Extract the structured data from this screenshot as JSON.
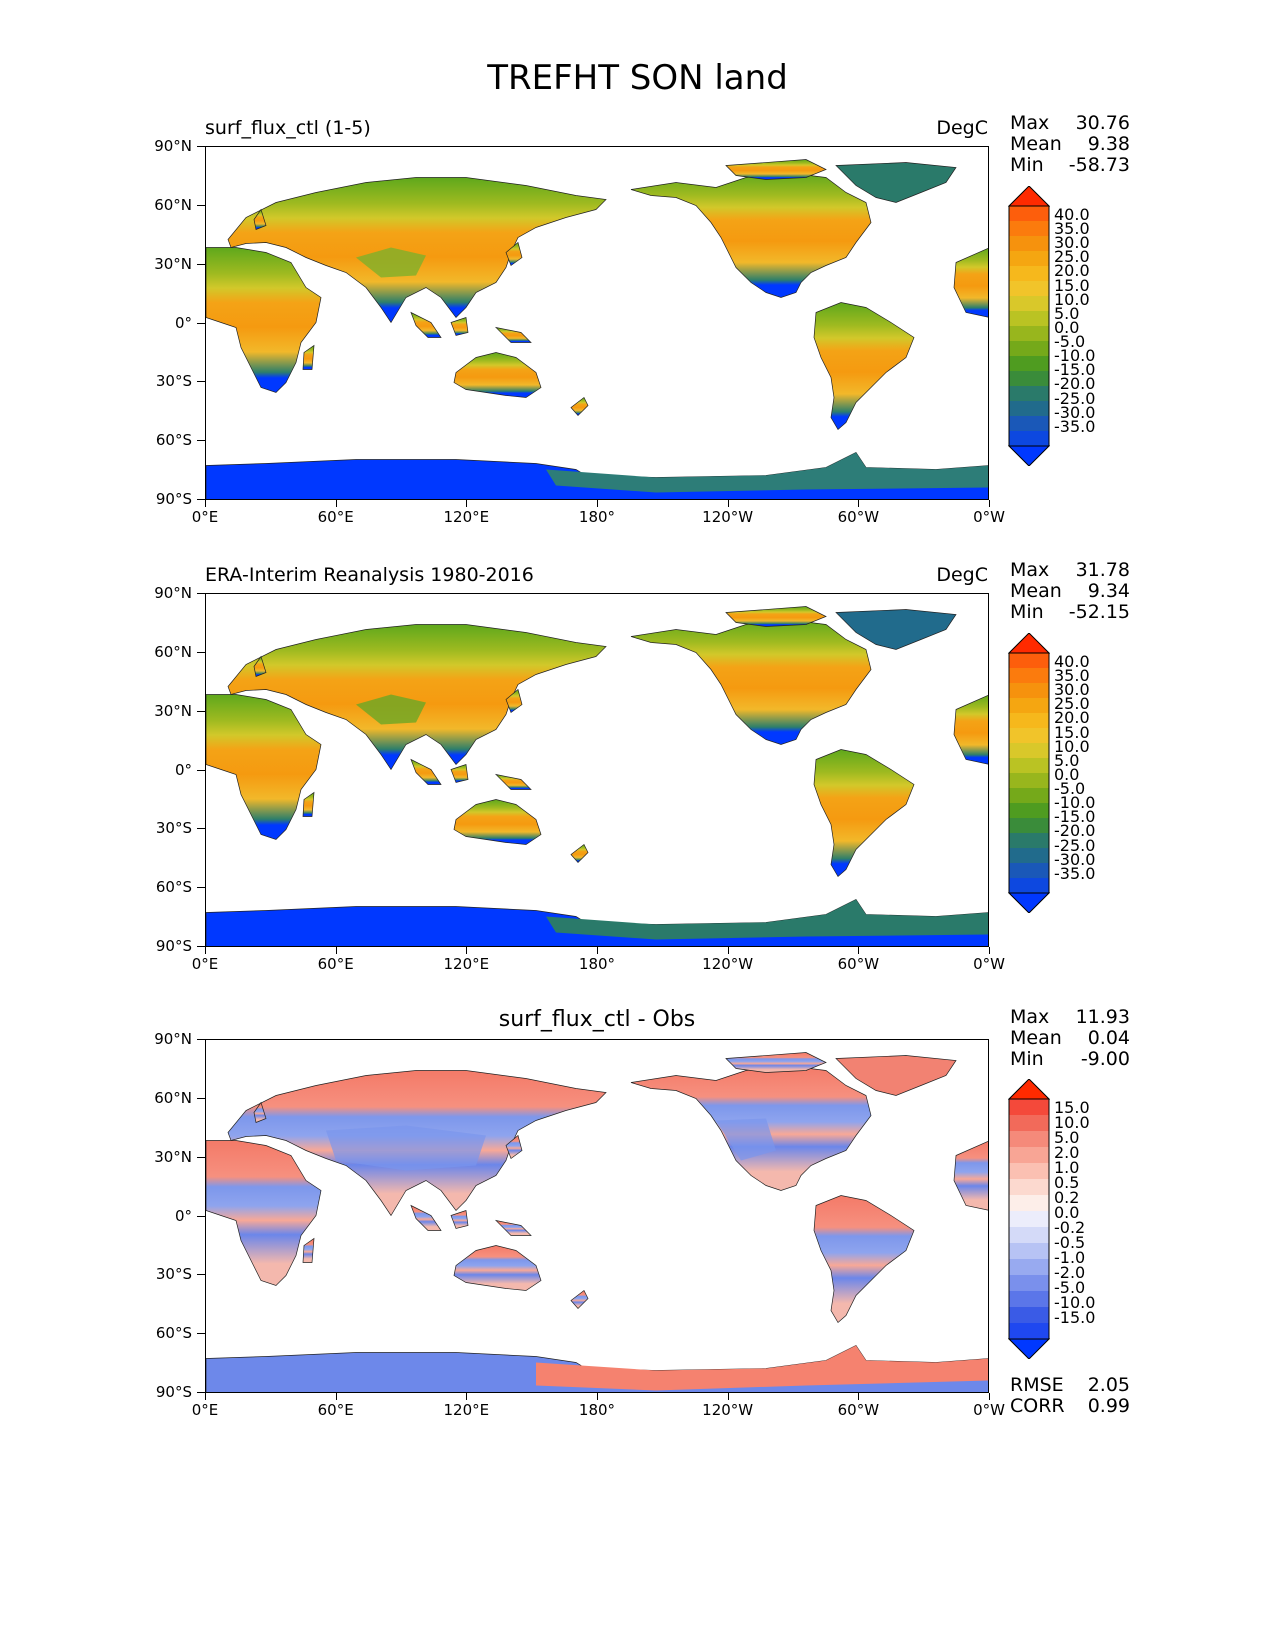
{
  "figure": {
    "title": "TREFHT SON land",
    "lat_ticks": [
      "90°N",
      "60°N",
      "30°N",
      "0°",
      "30°S",
      "60°S",
      "90°S"
    ],
    "lon_ticks": [
      "0°E",
      "60°E",
      "120°E",
      "180°",
      "120°W",
      "60°W",
      "0°W"
    ]
  },
  "panels": [
    {
      "title": "surf_flux_ctl (1-5)",
      "units": "DegC",
      "stats": [
        {
          "label": "Max",
          "value": "30.76"
        },
        {
          "label": "Mean",
          "value": "9.38"
        },
        {
          "label": "Min",
          "value": "-58.73"
        }
      ],
      "colorbar": {
        "labels": [
          "40.0",
          "35.0",
          "30.0",
          "25.0",
          "20.0",
          "15.0",
          "10.0",
          "5.0",
          "0.0",
          "-5.0",
          "-10.0",
          "-15.0",
          "-20.0",
          "-25.0",
          "-30.0",
          "-35.0"
        ],
        "colors": [
          "#ff2a00",
          "#fd5e0c",
          "#fb7b0d",
          "#f6920d",
          "#f5a611",
          "#f6b81c",
          "#f1c42a",
          "#d9c82a",
          "#bac323",
          "#98b61d",
          "#75a91a",
          "#4f9c20",
          "#3a8c3a",
          "#2a7a6a",
          "#216b8c",
          "#1a58b8",
          "#0d48e0",
          "#0038ff"
        ]
      }
    },
    {
      "title": "ERA-Interim Reanalysis 1980-2016",
      "units": "DegC",
      "stats": [
        {
          "label": "Max",
          "value": "31.78"
        },
        {
          "label": "Mean",
          "value": "9.34"
        },
        {
          "label": "Min",
          "value": "-52.15"
        }
      ],
      "colorbar": {
        "labels": [
          "40.0",
          "35.0",
          "30.0",
          "25.0",
          "20.0",
          "15.0",
          "10.0",
          "5.0",
          "0.0",
          "-5.0",
          "-10.0",
          "-15.0",
          "-20.0",
          "-25.0",
          "-30.0",
          "-35.0"
        ],
        "colors": [
          "#ff2a00",
          "#fd5e0c",
          "#fb7b0d",
          "#f6920d",
          "#f5a611",
          "#f6b81c",
          "#f1c42a",
          "#d9c82a",
          "#bac323",
          "#98b61d",
          "#75a91a",
          "#4f9c20",
          "#3a8c3a",
          "#2a7a6a",
          "#216b8c",
          "#1a58b8",
          "#0d48e0",
          "#0038ff"
        ]
      }
    },
    {
      "title": "surf_flux_ctl - Obs",
      "units": "",
      "stats": [
        {
          "label": "Max",
          "value": "11.93"
        },
        {
          "label": "Mean",
          "value": "0.04"
        },
        {
          "label": "Min",
          "value": "-9.00"
        }
      ],
      "colorbar": {
        "labels": [
          "15.0",
          "10.0",
          "5.0",
          "2.0",
          "1.0",
          "0.5",
          "0.2",
          "0.0",
          "-0.2",
          "-0.5",
          "-1.0",
          "-2.0",
          "-5.0",
          "-10.0",
          "-15.0"
        ],
        "colors": [
          "#ff2a00",
          "#f4493a",
          "#f26a5a",
          "#f58a7a",
          "#f8a595",
          "#fbc0b2",
          "#fcd9cf",
          "#fdeee9",
          "#ecedfb",
          "#d4daf8",
          "#b7c3f4",
          "#98aaf0",
          "#7a90ec",
          "#5b76e9",
          "#3a5be6",
          "#1f48f0",
          "#0038ff"
        ]
      },
      "error_stats": [
        {
          "label": "RMSE",
          "value": "2.05"
        },
        {
          "label": "CORR",
          "value": "0.99"
        }
      ]
    }
  ]
}
